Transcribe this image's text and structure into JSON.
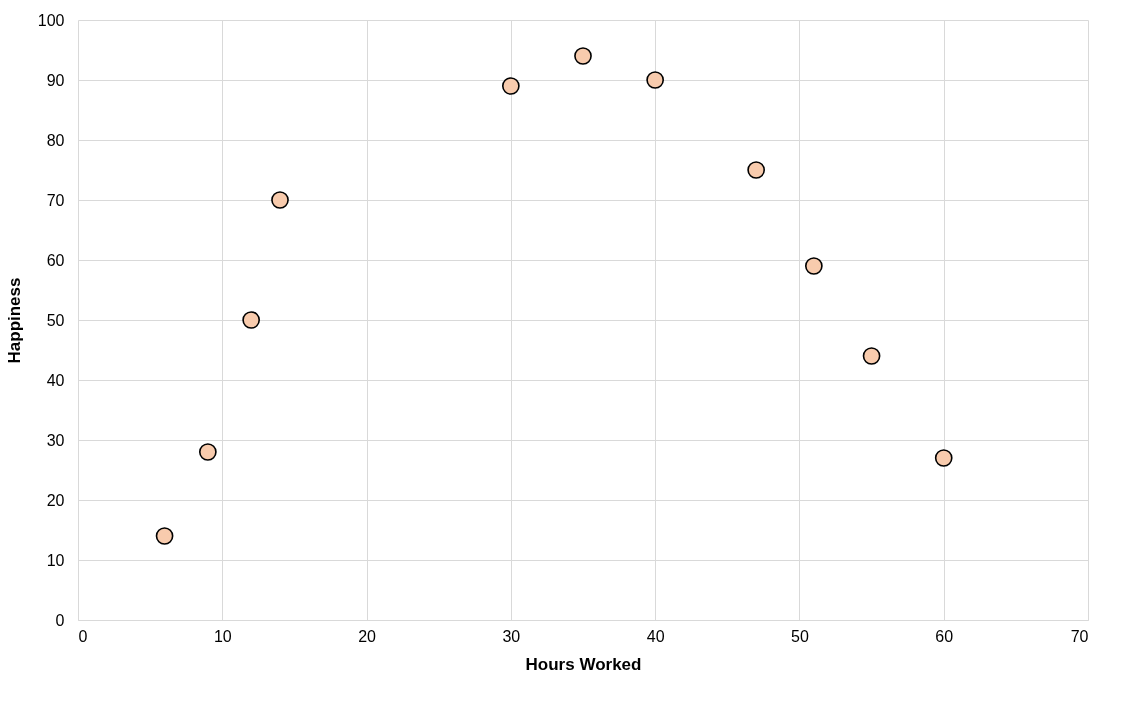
{
  "chart_data": {
    "type": "scatter",
    "xlabel": "Hours Worked",
    "ylabel": "Happiness",
    "x": [
      6,
      9,
      12,
      14,
      30,
      35,
      40,
      47,
      51,
      55,
      60
    ],
    "series": [
      {
        "color": "#f8cbad",
        "values": [
          14,
          28,
          50,
          70,
          89,
          94,
          90,
          75,
          59,
          44,
          27
        ]
      }
    ],
    "xlim": [
      0,
      70
    ],
    "xticks": [
      0,
      10,
      20,
      30,
      40,
      50,
      60,
      70
    ],
    "ylim": [
      0,
      100
    ],
    "yticks": [
      0,
      10,
      20,
      30,
      40,
      50,
      60,
      70,
      80,
      90,
      100
    ],
    "grid": true,
    "marker": "circle"
  }
}
